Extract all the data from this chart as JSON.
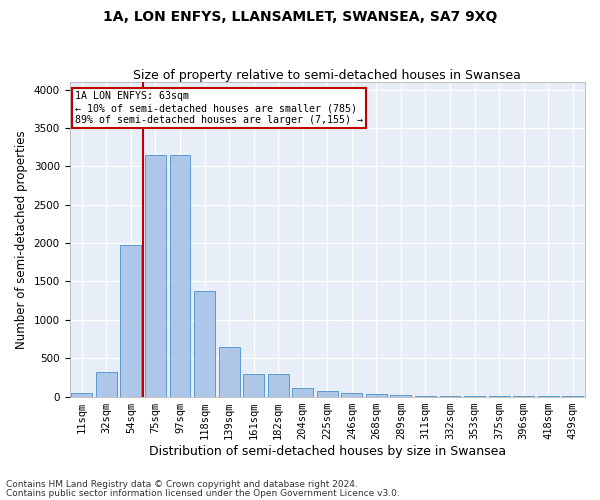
{
  "title": "1A, LON ENFYS, LLANSAMLET, SWANSEA, SA7 9XQ",
  "subtitle": "Size of property relative to semi-detached houses in Swansea",
  "xlabel": "Distribution of semi-detached houses by size in Swansea",
  "ylabel": "Number of semi-detached properties",
  "footer_line1": "Contains HM Land Registry data © Crown copyright and database right 2024.",
  "footer_line2": "Contains public sector information licensed under the Open Government Licence v3.0.",
  "annotation_title": "1A LON ENFYS: 63sqm",
  "annotation_line1": "← 10% of semi-detached houses are smaller (785)",
  "annotation_line2": "89% of semi-detached houses are larger (7,155) →",
  "bar_labels": [
    "11sqm",
    "32sqm",
    "54sqm",
    "75sqm",
    "97sqm",
    "118sqm",
    "139sqm",
    "161sqm",
    "182sqm",
    "204sqm",
    "225sqm",
    "246sqm",
    "268sqm",
    "289sqm",
    "311sqm",
    "332sqm",
    "353sqm",
    "375sqm",
    "396sqm",
    "418sqm",
    "439sqm"
  ],
  "bar_values": [
    50,
    320,
    1980,
    3150,
    3150,
    1380,
    640,
    290,
    290,
    110,
    70,
    50,
    30,
    20,
    10,
    8,
    5,
    5,
    5,
    5,
    5
  ],
  "bar_color": "#aec6e8",
  "bar_edge_color": "#5b9bd5",
  "vline_color": "#c00000",
  "ylim": [
    0,
    4100
  ],
  "yticks": [
    0,
    500,
    1000,
    1500,
    2000,
    2500,
    3000,
    3500,
    4000
  ],
  "background_color": "#e8eef7",
  "annotation_box_color": "#c00000",
  "grid_color": "#ffffff",
  "title_fontsize": 10,
  "subtitle_fontsize": 9,
  "axis_label_fontsize": 8.5,
  "tick_fontsize": 7.5,
  "footer_fontsize": 6.5
}
